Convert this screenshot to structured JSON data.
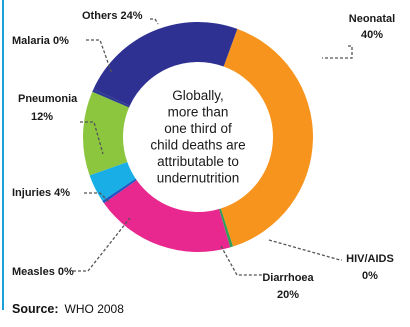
{
  "chart_data": {
    "type": "pie",
    "center_text": [
      "Globally,",
      "more than",
      "one third of",
      "child deaths are",
      "attributable to",
      "undernutrition"
    ],
    "slices": [
      {
        "label": "Neonatal",
        "value": 40,
        "display": "40%",
        "color": "#f7941d"
      },
      {
        "label": "HIV/AIDS",
        "value": 0.4,
        "display": "0%",
        "color": "#2e9e5b"
      },
      {
        "label": "Diarrhoea",
        "value": 20,
        "display": "20%",
        "color": "#e8288e"
      },
      {
        "label": "Measles",
        "value": 0.4,
        "display": "0%",
        "color": "#1e56c2"
      },
      {
        "label": "Injuries",
        "value": 4,
        "display": "4%",
        "color": "#1aaee6"
      },
      {
        "label": "Pneumonia",
        "value": 12,
        "display": "12%",
        "color": "#8cc63f"
      },
      {
        "label": "Malaria",
        "value": 0.4,
        "display": "0%",
        "color": "#2b3990"
      },
      {
        "label": "Others",
        "value": 24,
        "display": "24%",
        "color": "#2e3192"
      }
    ]
  },
  "source": {
    "label": "Source:",
    "value": "WHO 2008"
  },
  "colors": {
    "accent_bar": "#1aa1d8",
    "leader_line": "#555555"
  }
}
